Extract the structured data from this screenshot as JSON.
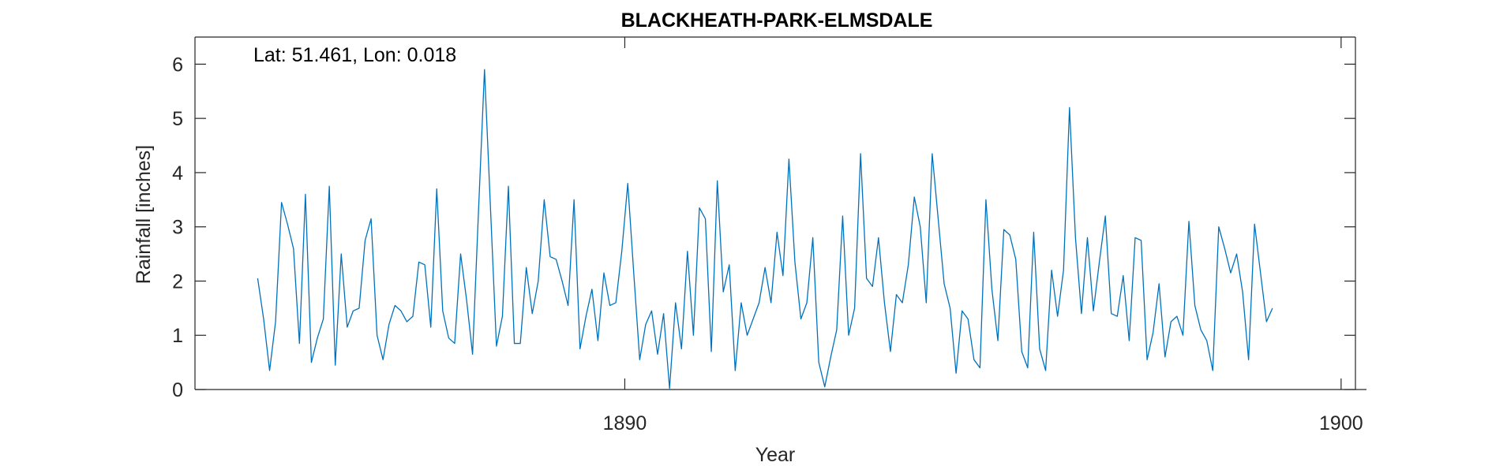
{
  "chart_data": {
    "type": "line",
    "title": "BLACKHEATH-PARK-ELMSDALE",
    "xlabel": "Year",
    "ylabel": "Rainfall [inches]",
    "annotation": "Lat: 51.461, Lon: 0.018",
    "xlim": [
      1884,
      1900.2
    ],
    "ylim": [
      0,
      6.5
    ],
    "xticks": [
      1890,
      1900
    ],
    "yticks": [
      0,
      1,
      2,
      3,
      4,
      5,
      6
    ],
    "grid": false,
    "series_color": "#0072BD",
    "series": [
      {
        "start": 1884.875,
        "step_years": 0.0833333,
        "values": [
          2.05,
          1.3,
          0.35,
          1.25,
          3.45,
          3.05,
          2.6,
          0.85,
          3.6,
          0.5,
          0.95,
          1.3,
          3.75,
          0.45,
          2.5,
          1.15,
          1.45,
          1.5,
          2.75,
          3.15,
          1.0,
          0.55,
          1.2,
          1.55,
          1.45,
          1.25,
          1.35,
          2.35,
          2.3,
          1.15,
          3.7,
          1.45,
          0.95,
          0.85,
          2.5,
          1.65,
          0.65,
          3.3,
          5.9,
          3.35,
          0.8,
          1.35,
          3.75,
          0.85,
          0.85,
          2.25,
          1.4,
          2.0,
          3.5,
          2.45,
          2.4,
          2.0,
          1.55,
          3.5,
          0.75,
          1.35,
          1.85,
          0.9,
          2.15,
          1.55,
          1.6,
          2.55,
          3.8,
          2.15,
          0.55,
          1.2,
          1.45,
          0.65,
          1.4,
          0.02,
          1.6,
          0.75,
          2.55,
          1.0,
          3.35,
          3.15,
          0.7,
          3.85,
          1.8,
          2.3,
          0.35,
          1.6,
          1.0,
          1.3,
          1.6,
          2.25,
          1.6,
          2.9,
          2.1,
          4.25,
          2.35,
          1.3,
          1.6,
          2.8,
          0.5,
          0.05,
          0.6,
          1.1,
          3.2,
          1.0,
          1.5,
          4.35,
          2.05,
          1.9,
          2.8,
          1.6,
          0.7,
          1.75,
          1.6,
          2.3,
          3.55,
          3.0,
          1.6,
          4.35,
          3.15,
          1.95,
          1.5,
          0.3,
          1.45,
          1.3,
          0.55,
          0.4,
          3.5,
          1.85,
          0.9,
          2.95,
          2.85,
          2.4,
          0.7,
          0.4,
          2.9,
          0.75,
          0.35,
          2.2,
          1.35,
          2.2,
          5.2,
          2.8,
          1.4,
          2.8,
          1.45,
          2.35,
          3.2,
          1.4,
          1.35,
          2.1,
          0.9,
          2.8,
          2.75,
          0.55,
          1.05,
          1.95,
          0.6,
          1.25,
          1.35,
          1.0,
          3.1,
          1.55,
          1.1,
          0.9,
          0.35,
          3.0,
          2.6,
          2.15,
          2.5,
          1.8,
          0.55,
          3.05,
          2.15,
          1.25,
          1.5
        ]
      }
    ]
  }
}
